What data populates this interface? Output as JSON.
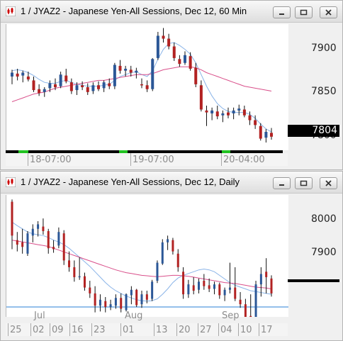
{
  "window1": {
    "title": "1 / JYAZ2 - Japanese Yen-All Sessions, Dec 12, 60 Min",
    "price_labels": [
      "7900",
      "7850",
      "7800"
    ],
    "last_price": "7804",
    "x_labels": [
      "18-07:00",
      "19-07:00",
      "20-04:00"
    ],
    "candle_up_color": "#2b5797",
    "candle_down_color": "#b22222",
    "ma_fast_color": "#8ab4e8",
    "ma_slow_color": "#d94f8a"
  },
  "window2": {
    "title": "1 / JYAZ2 - Japanese Yen-All Sessions, Dec 12, Daily",
    "price_labels": [
      "8000",
      "7900"
    ],
    "months": [
      "Jul",
      "Aug",
      "Sep"
    ],
    "x_labels": [
      "25",
      "02",
      "09",
      "16",
      "23",
      "01",
      "13",
      "20",
      "27",
      "04",
      "10",
      "17"
    ],
    "horizontal_line_color": "#2a7fd4"
  },
  "chart_data": [
    {
      "type": "candlestick",
      "title": "1 / JYAZ2 - Japanese Yen-All Sessions, Dec 12, 60 Min",
      "y_ticks": [
        7900,
        7850,
        7800
      ],
      "ylim": [
        7790,
        7920
      ],
      "x_tick_labels": [
        "18-07:00",
        "19-07:00",
        "20-04:00"
      ],
      "last_price": 7804,
      "grid": false,
      "candles": [
        {
          "o": 7866,
          "h": 7873,
          "l": 7858,
          "c": 7870
        },
        {
          "o": 7869,
          "h": 7874,
          "l": 7862,
          "c": 7866
        },
        {
          "o": 7867,
          "h": 7872,
          "l": 7860,
          "c": 7870
        },
        {
          "o": 7866,
          "h": 7871,
          "l": 7861,
          "c": 7863
        },
        {
          "o": 7862,
          "h": 7866,
          "l": 7850,
          "c": 7852
        },
        {
          "o": 7853,
          "h": 7858,
          "l": 7846,
          "c": 7849
        },
        {
          "o": 7850,
          "h": 7855,
          "l": 7845,
          "c": 7853
        },
        {
          "o": 7854,
          "h": 7862,
          "l": 7850,
          "c": 7859
        },
        {
          "o": 7858,
          "h": 7864,
          "l": 7852,
          "c": 7855
        },
        {
          "o": 7856,
          "h": 7871,
          "l": 7854,
          "c": 7868
        },
        {
          "o": 7867,
          "h": 7874,
          "l": 7859,
          "c": 7861
        },
        {
          "o": 7860,
          "h": 7864,
          "l": 7848,
          "c": 7851
        },
        {
          "o": 7852,
          "h": 7860,
          "l": 7847,
          "c": 7857
        },
        {
          "o": 7857,
          "h": 7861,
          "l": 7852,
          "c": 7855
        },
        {
          "o": 7855,
          "h": 7859,
          "l": 7847,
          "c": 7850
        },
        {
          "o": 7851,
          "h": 7860,
          "l": 7848,
          "c": 7857
        },
        {
          "o": 7857,
          "h": 7861,
          "l": 7851,
          "c": 7853
        },
        {
          "o": 7854,
          "h": 7862,
          "l": 7850,
          "c": 7860
        },
        {
          "o": 7859,
          "h": 7864,
          "l": 7853,
          "c": 7856
        },
        {
          "o": 7856,
          "h": 7880,
          "l": 7853,
          "c": 7878
        },
        {
          "o": 7877,
          "h": 7883,
          "l": 7869,
          "c": 7872
        },
        {
          "o": 7872,
          "h": 7877,
          "l": 7866,
          "c": 7874
        },
        {
          "o": 7873,
          "h": 7877,
          "l": 7866,
          "c": 7870
        },
        {
          "o": 7870,
          "h": 7875,
          "l": 7864,
          "c": 7872
        },
        {
          "o": 7858,
          "h": 7864,
          "l": 7854,
          "c": 7857
        },
        {
          "o": 7857,
          "h": 7862,
          "l": 7850,
          "c": 7853
        },
        {
          "o": 7853,
          "h": 7885,
          "l": 7851,
          "c": 7884
        },
        {
          "o": 7885,
          "h": 7912,
          "l": 7883,
          "c": 7908
        },
        {
          "o": 7908,
          "h": 7916,
          "l": 7901,
          "c": 7905
        },
        {
          "o": 7905,
          "h": 7910,
          "l": 7894,
          "c": 7897
        },
        {
          "o": 7897,
          "h": 7901,
          "l": 7882,
          "c": 7885
        },
        {
          "o": 7884,
          "h": 7888,
          "l": 7876,
          "c": 7879
        },
        {
          "o": 7880,
          "h": 7892,
          "l": 7878,
          "c": 7888
        },
        {
          "o": 7887,
          "h": 7891,
          "l": 7872,
          "c": 7874
        },
        {
          "o": 7875,
          "h": 7880,
          "l": 7855,
          "c": 7858
        },
        {
          "o": 7857,
          "h": 7862,
          "l": 7830,
          "c": 7832
        },
        {
          "o": 7831,
          "h": 7836,
          "l": 7815,
          "c": 7829
        },
        {
          "o": 7828,
          "h": 7834,
          "l": 7821,
          "c": 7831
        },
        {
          "o": 7830,
          "h": 7836,
          "l": 7822,
          "c": 7825
        },
        {
          "o": 7826,
          "h": 7831,
          "l": 7819,
          "c": 7828
        },
        {
          "o": 7829,
          "h": 7834,
          "l": 7823,
          "c": 7826
        },
        {
          "o": 7828,
          "h": 7834,
          "l": 7822,
          "c": 7831
        },
        {
          "o": 7831,
          "h": 7837,
          "l": 7826,
          "c": 7833
        },
        {
          "o": 7832,
          "h": 7836,
          "l": 7824,
          "c": 7826
        },
        {
          "o": 7826,
          "h": 7830,
          "l": 7816,
          "c": 7821
        },
        {
          "o": 7821,
          "h": 7826,
          "l": 7812,
          "c": 7816
        },
        {
          "o": 7815,
          "h": 7818,
          "l": 7800,
          "c": 7802
        },
        {
          "o": 7803,
          "h": 7812,
          "l": 7798,
          "c": 7809
        },
        {
          "o": 7808,
          "h": 7813,
          "l": 7801,
          "c": 7804
        }
      ],
      "series": [
        {
          "type": "line",
          "values": [
            7872,
            7873,
            7872,
            7870,
            7867,
            7863,
            7860,
            7859,
            7859,
            7861,
            7862,
            7860,
            7858,
            7857,
            7856,
            7856,
            7856,
            7857,
            7858,
            7862,
            7866,
            7868,
            7870,
            7871,
            7868,
            7866,
            7872,
            7884,
            7894,
            7900,
            7901,
            7898,
            7894,
            7889,
            7880,
            7868,
            7856,
            7846,
            7838,
            7833,
            7830,
            7829,
            7829,
            7829,
            7827,
            7823,
            7817,
            7812,
            7809
          ]
        },
        {
          "type": "line",
          "values": [
            7840,
            7842,
            7844,
            7846,
            7848,
            7849,
            7850,
            7852,
            7854,
            7855,
            7856,
            7857,
            7858,
            7859,
            7860,
            7861,
            7862,
            7862,
            7863,
            7864,
            7865,
            7866,
            7867,
            7868,
            7868,
            7868,
            7869,
            7871,
            7873,
            7874,
            7875,
            7876,
            7876,
            7876,
            7875,
            7873,
            7870,
            7868,
            7866,
            7864,
            7862,
            7860,
            7858,
            7856,
            7855,
            7854,
            7853,
            7852,
            7851
          ]
        }
      ]
    },
    {
      "type": "candlestick",
      "title": "1 / JYAZ2 - Japanese Yen-All Sessions, Dec 12, Daily",
      "y_ticks": [
        8000,
        7900
      ],
      "ylim": [
        7780,
        8050
      ],
      "x_tick_labels": [
        "25",
        "02",
        "09",
        "16",
        "23",
        "01",
        "13",
        "20",
        "27",
        "04",
        "10",
        "17"
      ],
      "month_labels": [
        "Jul",
        "Aug",
        "Sep"
      ],
      "reference_line": 7802,
      "grid": false,
      "candles": [
        {
          "o": 8035,
          "h": 8040,
          "l": 7930,
          "c": 7960
        },
        {
          "o": 7950,
          "h": 7968,
          "l": 7925,
          "c": 7940
        },
        {
          "o": 7945,
          "h": 7975,
          "l": 7920,
          "c": 7935
        },
        {
          "o": 7920,
          "h": 7970,
          "l": 7915,
          "c": 7965
        },
        {
          "o": 7960,
          "h": 7985,
          "l": 7945,
          "c": 7975
        },
        {
          "o": 7975,
          "h": 7992,
          "l": 7958,
          "c": 7985
        },
        {
          "o": 7980,
          "h": 7998,
          "l": 7962,
          "c": 7970
        },
        {
          "o": 7970,
          "h": 7975,
          "l": 7920,
          "c": 7932
        },
        {
          "o": 7935,
          "h": 7950,
          "l": 7922,
          "c": 7930
        },
        {
          "o": 7938,
          "h": 7978,
          "l": 7932,
          "c": 7968
        },
        {
          "o": 7965,
          "h": 7972,
          "l": 7895,
          "c": 7905
        },
        {
          "o": 7905,
          "h": 7925,
          "l": 7880,
          "c": 7890
        },
        {
          "o": 7890,
          "h": 7905,
          "l": 7858,
          "c": 7868
        },
        {
          "o": 7868,
          "h": 7912,
          "l": 7862,
          "c": 7870
        },
        {
          "o": 7870,
          "h": 7878,
          "l": 7838,
          "c": 7845
        },
        {
          "o": 7845,
          "h": 7860,
          "l": 7822,
          "c": 7832
        },
        {
          "o": 7832,
          "h": 7848,
          "l": 7790,
          "c": 7805
        },
        {
          "o": 7805,
          "h": 7830,
          "l": 7792,
          "c": 7818
        },
        {
          "o": 7815,
          "h": 7824,
          "l": 7790,
          "c": 7802
        },
        {
          "o": 7802,
          "h": 7818,
          "l": 7795,
          "c": 7808
        },
        {
          "o": 7805,
          "h": 7830,
          "l": 7798,
          "c": 7822
        },
        {
          "o": 7822,
          "h": 7832,
          "l": 7790,
          "c": 7798
        },
        {
          "o": 7795,
          "h": 7832,
          "l": 7792,
          "c": 7830
        },
        {
          "o": 7828,
          "h": 7848,
          "l": 7808,
          "c": 7840
        },
        {
          "o": 7840,
          "h": 7842,
          "l": 7802,
          "c": 7806
        },
        {
          "o": 7808,
          "h": 7838,
          "l": 7800,
          "c": 7830
        },
        {
          "o": 7830,
          "h": 7838,
          "l": 7810,
          "c": 7818
        },
        {
          "o": 7820,
          "h": 7862,
          "l": 7815,
          "c": 7858
        },
        {
          "o": 7860,
          "h": 7905,
          "l": 7855,
          "c": 7900
        },
        {
          "o": 7898,
          "h": 7952,
          "l": 7895,
          "c": 7945
        },
        {
          "o": 7945,
          "h": 7960,
          "l": 7928,
          "c": 7952
        },
        {
          "o": 7950,
          "h": 7955,
          "l": 7918,
          "c": 7925
        },
        {
          "o": 7920,
          "h": 7930,
          "l": 7880,
          "c": 7890
        },
        {
          "o": 7880,
          "h": 7890,
          "l": 7820,
          "c": 7830
        },
        {
          "o": 7830,
          "h": 7862,
          "l": 7822,
          "c": 7852
        },
        {
          "o": 7850,
          "h": 7868,
          "l": 7830,
          "c": 7838
        },
        {
          "o": 7840,
          "h": 7865,
          "l": 7832,
          "c": 7858
        },
        {
          "o": 7860,
          "h": 7875,
          "l": 7840,
          "c": 7848
        },
        {
          "o": 7850,
          "h": 7865,
          "l": 7835,
          "c": 7842
        },
        {
          "o": 7842,
          "h": 7858,
          "l": 7830,
          "c": 7852
        },
        {
          "o": 7852,
          "h": 7856,
          "l": 7820,
          "c": 7828
        },
        {
          "o": 7828,
          "h": 7845,
          "l": 7815,
          "c": 7840
        },
        {
          "o": 7840,
          "h": 7900,
          "l": 7832,
          "c": 7845
        },
        {
          "o": 7845,
          "h": 7890,
          "l": 7815,
          "c": 7820
        },
        {
          "o": 7818,
          "h": 7835,
          "l": 7800,
          "c": 7808
        },
        {
          "o": 7808,
          "h": 7820,
          "l": 7772,
          "c": 7780
        },
        {
          "o": 7782,
          "h": 7830,
          "l": 7728,
          "c": 7760
        },
        {
          "o": 7762,
          "h": 7860,
          "l": 7758,
          "c": 7852
        },
        {
          "o": 7852,
          "h": 7890,
          "l": 7825,
          "c": 7875
        },
        {
          "o": 7880,
          "h": 7910,
          "l": 7832,
          "c": 7868
        },
        {
          "o": 7865,
          "h": 7872,
          "l": 7825,
          "c": 7832
        }
      ],
      "series": [
        {
          "type": "line",
          "values": [
            7990,
            7982,
            7975,
            7968,
            7964,
            7962,
            7960,
            7956,
            7950,
            7946,
            7940,
            7932,
            7922,
            7912,
            7902,
            7892,
            7880,
            7868,
            7856,
            7846,
            7838,
            7832,
            7826,
            7822,
            7818,
            7816,
            7815,
            7816,
            7820,
            7830,
            7842,
            7856,
            7866,
            7872,
            7876,
            7880,
            7884,
            7886,
            7884,
            7880,
            7872,
            7864,
            7856,
            7850,
            7846,
            7842,
            7838,
            7836,
            7834,
            7832,
            7830
          ]
        },
        {
          "type": "line",
          "values": [
            7950,
            7948,
            7946,
            7944,
            7942,
            7940,
            7938,
            7936,
            7932,
            7928,
            7924,
            7920,
            7916,
            7912,
            7908,
            7904,
            7900,
            7896,
            7892,
            7888,
            7884,
            7881,
            7878,
            7876,
            7874,
            7872,
            7871,
            7870,
            7869,
            7870,
            7871,
            7872,
            7872,
            7871,
            7870,
            7868,
            7866,
            7864,
            7862,
            7860,
            7858,
            7856,
            7855,
            7854,
            7852,
            7850,
            7848,
            7846,
            7845,
            7844,
            7842
          ]
        }
      ]
    }
  ]
}
